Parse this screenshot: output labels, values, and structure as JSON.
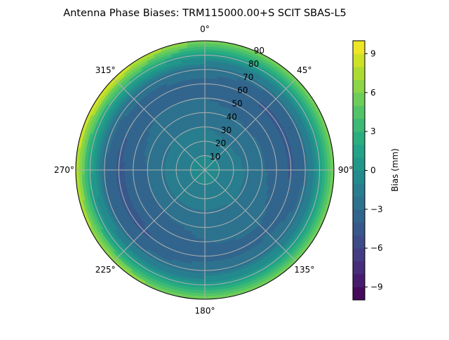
{
  "chart_data": {
    "type": "polar-contour",
    "title": "Antenna Phase Biases: TRM115000.00+S  SCIT SBAS-L5",
    "angular_tick_labels": [
      "0°",
      "45°",
      "90°",
      "135°",
      "180°",
      "225°",
      "270°",
      "315°"
    ],
    "radial_tick_labels": [
      "10",
      "20",
      "30",
      "40",
      "50",
      "60",
      "70",
      "80",
      "90"
    ],
    "radial_range": [
      0,
      90
    ],
    "grid": true,
    "colorbar": {
      "label": "Bias (mm)",
      "range": [
        -10,
        10
      ],
      "levels_step": 1,
      "tick_labels": [
        "−9",
        "−6",
        "−3",
        "0",
        "3",
        "6",
        "9"
      ],
      "tick_values": [
        -9,
        -6,
        -3,
        0,
        3,
        6,
        9
      ],
      "colormap": "viridis"
    },
    "zenith": [
      0,
      10,
      20,
      30,
      40,
      50,
      60,
      70,
      80,
      90
    ],
    "azimuth": [
      0,
      45,
      90,
      135,
      180,
      225,
      270,
      315
    ],
    "values": [
      [
        -0.5,
        -0.5,
        -0.5,
        -0.5,
        -0.5,
        -0.5,
        -0.5,
        -0.5
      ],
      [
        -1.0,
        -1.0,
        -1.0,
        -1.0,
        -1.0,
        -1.0,
        -1.0,
        -1.0
      ],
      [
        -1.5,
        -1.8,
        -1.5,
        -1.5,
        -1.5,
        -1.5,
        -1.5,
        -1.5
      ],
      [
        -2.0,
        -2.5,
        -2.2,
        -2.0,
        -2.2,
        -2.2,
        -2.2,
        -2.0
      ],
      [
        -2.5,
        -3.0,
        -2.8,
        -2.5,
        -2.8,
        -3.0,
        -3.0,
        -2.5
      ],
      [
        -3.0,
        -3.5,
        -3.5,
        -2.8,
        -3.0,
        -3.5,
        -3.6,
        -3.0
      ],
      [
        -3.2,
        -4.2,
        -4.2,
        -3.2,
        -3.3,
        -4.2,
        -4.3,
        -3.8
      ],
      [
        -2.5,
        -3.0,
        -3.0,
        -2.5,
        -2.5,
        -3.0,
        -3.0,
        -2.5
      ],
      [
        0.5,
        0.5,
        0.5,
        0.5,
        0.5,
        0.8,
        1.5,
        2.5
      ],
      [
        6.0,
        6.0,
        5.5,
        5.5,
        6.0,
        7.0,
        8.5,
        9.5
      ]
    ]
  }
}
